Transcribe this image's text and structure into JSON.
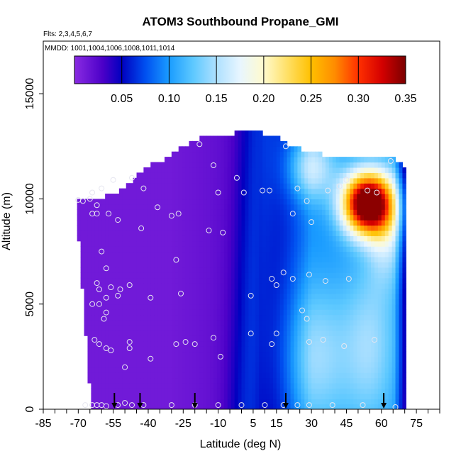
{
  "chart_data": {
    "type": "heatmap",
    "title": "ATOM3 Southbound Propane_GMI",
    "subtitle_flights": "Flts: 2,3,4,5,6,7",
    "subtitle_dates": "MMDD: 1001,1004,1006,1008,1011,1014",
    "xlabel": "Latitude (deg N)",
    "ylabel": "Altitude (m)",
    "xlim": [
      -85,
      85
    ],
    "ylim": [
      0,
      17500
    ],
    "x_ticks": [
      -85,
      -70,
      -55,
      -40,
      -25,
      -10,
      5,
      15,
      30,
      45,
      60,
      75
    ],
    "x_minor_step": 5,
    "y_ticks": [
      0,
      5000,
      10000,
      15000
    ],
    "grid": false,
    "colorbar": {
      "range": [
        0,
        0.35
      ],
      "ticks": [
        0.05,
        0.1,
        0.15,
        0.2,
        0.25,
        0.3,
        0.35
      ],
      "tick_labels": [
        "0.05",
        "0.10",
        "0.15",
        "0.20",
        "0.25",
        "0.30",
        "0.35"
      ],
      "stops": [
        {
          "v": 0.0,
          "c": "#8a2be2"
        },
        {
          "v": 0.03,
          "c": "#4b00c8"
        },
        {
          "v": 0.05,
          "c": "#0000c0"
        },
        {
          "v": 0.075,
          "c": "#0050f0"
        },
        {
          "v": 0.1,
          "c": "#1a9cff"
        },
        {
          "v": 0.125,
          "c": "#5cc8ff"
        },
        {
          "v": 0.15,
          "c": "#aee0ff"
        },
        {
          "v": 0.175,
          "c": "#e8f6ff"
        },
        {
          "v": 0.2,
          "c": "#fffacd"
        },
        {
          "v": 0.225,
          "c": "#ffe066"
        },
        {
          "v": 0.25,
          "c": "#ffc000"
        },
        {
          "v": 0.275,
          "c": "#ff8c00"
        },
        {
          "v": 0.3,
          "c": "#ff3000"
        },
        {
          "v": 0.325,
          "c": "#d40000"
        },
        {
          "v": 0.35,
          "c": "#7a0000"
        }
      ]
    },
    "profile_markers_lat": [
      -54.5,
      -43.5,
      -20,
      19,
      61
    ],
    "observations": [
      [
        -70,
        9950
      ],
      [
        -68,
        9900
      ],
      [
        -65,
        10000
      ],
      [
        -64,
        10300
      ],
      [
        -62,
        9700
      ],
      [
        -64,
        9300
      ],
      [
        -62,
        9300
      ],
      [
        -60,
        10500
      ],
      [
        -57,
        9300
      ],
      [
        -55,
        10900
      ],
      [
        -53,
        9000
      ],
      [
        -47,
        11000
      ],
      [
        -42,
        10500
      ],
      [
        -43,
        8600
      ],
      [
        -36,
        9600
      ],
      [
        -30,
        9200
      ],
      [
        -27,
        9300
      ],
      [
        -28,
        7100
      ],
      [
        -18,
        12600
      ],
      [
        -14,
        8500
      ],
      [
        -12,
        11600
      ],
      [
        -10,
        10300
      ],
      [
        -8,
        8400
      ],
      [
        -2,
        11000
      ],
      [
        1,
        10300
      ],
      [
        9,
        10400
      ],
      [
        12,
        10400
      ],
      [
        19,
        12500
      ],
      [
        22,
        9300
      ],
      [
        24,
        10500
      ],
      [
        28,
        9900
      ],
      [
        30,
        8900
      ],
      [
        37,
        10400
      ],
      [
        42,
        10600
      ],
      [
        45,
        10900
      ],
      [
        54,
        10400
      ],
      [
        58,
        10300
      ],
      [
        64,
        11800
      ],
      [
        -60,
        7500
      ],
      [
        -58,
        6700
      ],
      [
        -62,
        6000
      ],
      [
        -61,
        5700
      ],
      [
        -56,
        5800
      ],
      [
        -52,
        5700
      ],
      [
        -48,
        5900
      ],
      [
        -53,
        5400
      ],
      [
        -58,
        5300
      ],
      [
        -61,
        5000
      ],
      [
        -64,
        5000
      ],
      [
        -58,
        4600
      ],
      [
        -59,
        4300
      ],
      [
        -39,
        5300
      ],
      [
        -26,
        5500
      ],
      [
        4,
        5400
      ],
      [
        13,
        6200
      ],
      [
        15,
        5900
      ],
      [
        18,
        6500
      ],
      [
        22,
        6200
      ],
      [
        29,
        6400
      ],
      [
        36,
        6100
      ],
      [
        46,
        6200
      ],
      [
        26,
        4700
      ],
      [
        28,
        4300
      ],
      [
        -63,
        3300
      ],
      [
        -61,
        3100
      ],
      [
        -58,
        2900
      ],
      [
        -56,
        2800
      ],
      [
        -48,
        3200
      ],
      [
        -48,
        2900
      ],
      [
        -39,
        2400
      ],
      [
        -28,
        3100
      ],
      [
        -24,
        3200
      ],
      [
        -20,
        3100
      ],
      [
        -12,
        3400
      ],
      [
        -9,
        2500
      ],
      [
        4,
        3600
      ],
      [
        13,
        3100
      ],
      [
        15,
        3600
      ],
      [
        29,
        3200
      ],
      [
        35,
        3300
      ],
      [
        44,
        3000
      ],
      [
        57,
        3300
      ],
      [
        -50,
        2000
      ],
      [
        -67,
        200
      ],
      [
        -64,
        200
      ],
      [
        -62,
        200
      ],
      [
        -60,
        200
      ],
      [
        -58,
        150
      ],
      [
        -53,
        200
      ],
      [
        -50,
        300
      ],
      [
        -47,
        200
      ],
      [
        -42,
        200
      ],
      [
        -30,
        200
      ],
      [
        -20,
        200
      ],
      [
        -10,
        200
      ],
      [
        0,
        200
      ],
      [
        10,
        200
      ],
      [
        18,
        200
      ],
      [
        24,
        200
      ],
      [
        29,
        200
      ],
      [
        39,
        200
      ],
      [
        52,
        200
      ],
      [
        66,
        100
      ]
    ]
  }
}
